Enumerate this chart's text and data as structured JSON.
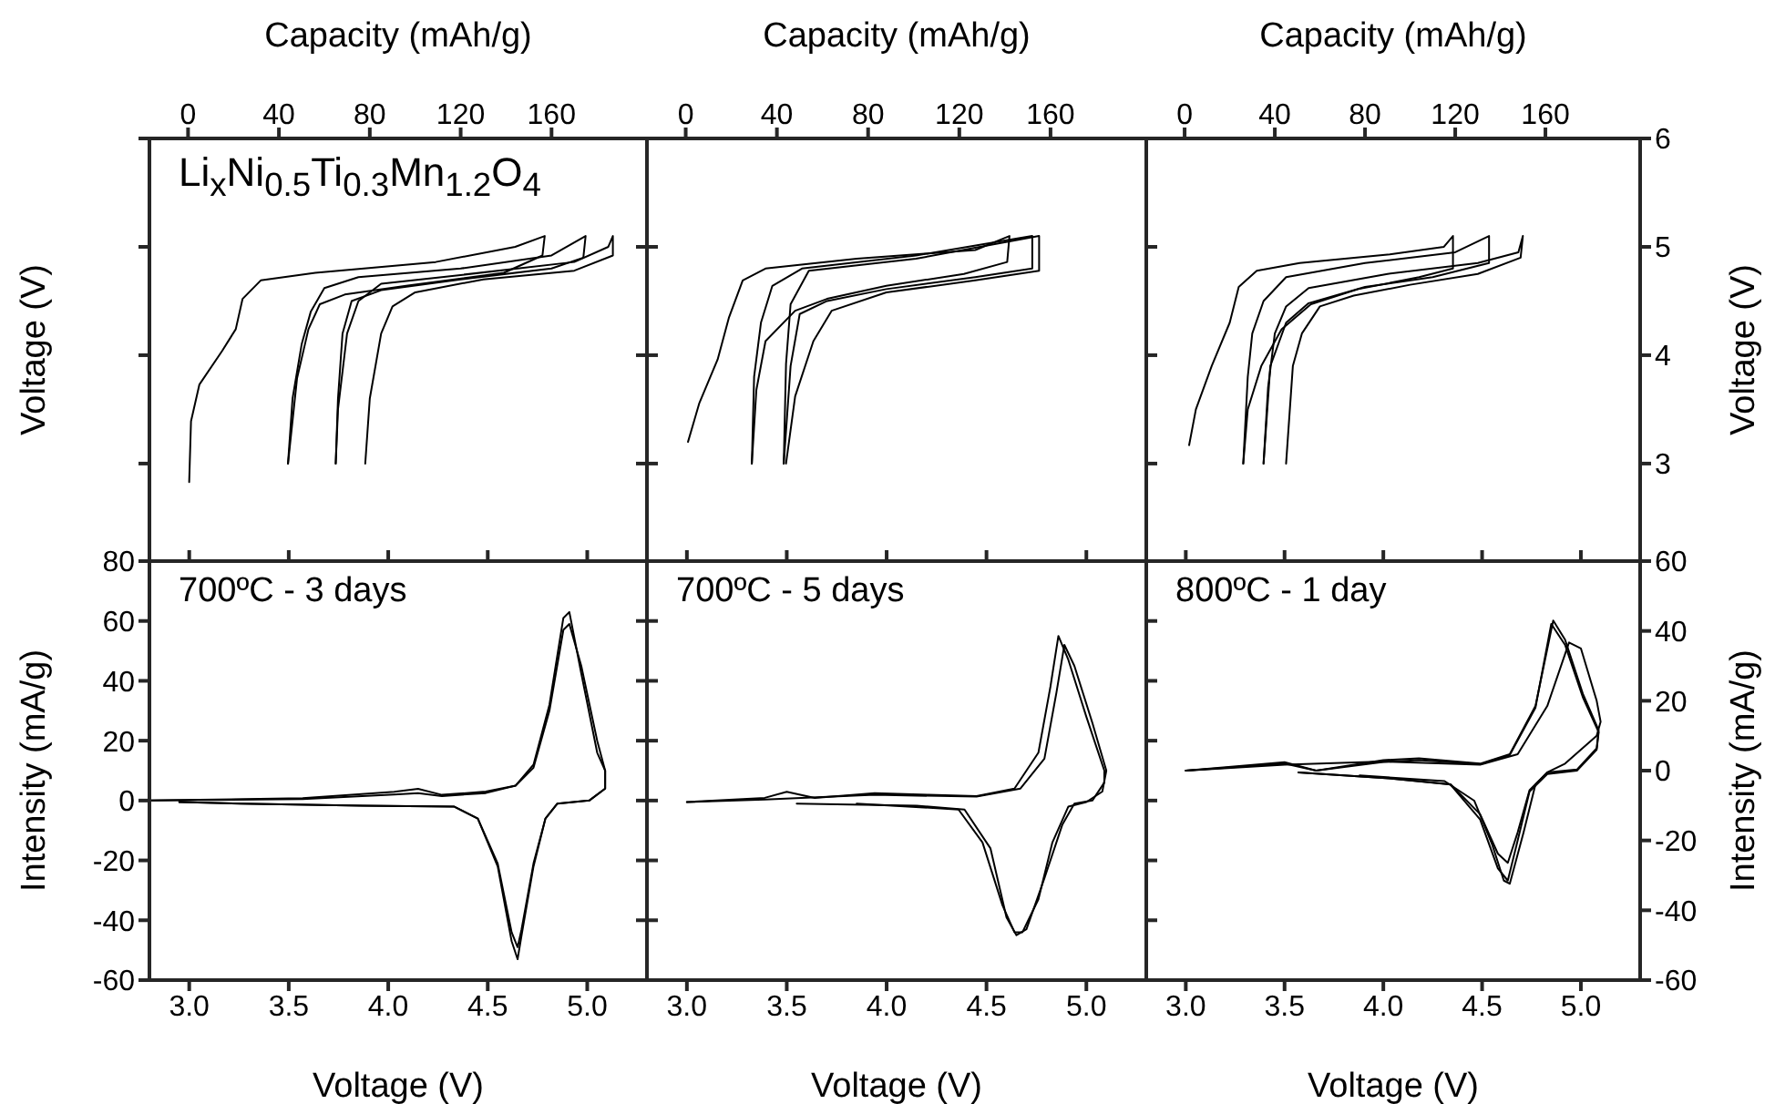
{
  "chart_data": [
    {
      "type": "line",
      "xlabel": "Capacity (mAh/g)",
      "ylabel": "Voltage (V)",
      "xlim": [
        -17,
        202
      ],
      "xticks": [
        0,
        40,
        80,
        120,
        160
      ],
      "ylim": [
        2.1,
        6
      ],
      "yticks": [
        3,
        4,
        5,
        6
      ],
      "tick_labels": "x",
      "annotations": [
        "Li$_{x}$Ni$_{0.5}$Ti$_{0.3}$Mn$_{1.2}$O$_{4}$"
      ],
      "series": [
        {
          "color": "#000000",
          "x": [
            0.5,
            1.3,
            5,
            15,
            21,
            24,
            32,
            56,
            109,
            144,
            157,
            156,
            139,
            96,
            69,
            58,
            53,
            48,
            44
          ],
          "values": [
            2.83,
            3.39,
            3.73,
            4.04,
            4.24,
            4.52,
            4.69,
            4.76,
            4.86,
            5.0,
            5.1,
            4.92,
            4.76,
            4.64,
            4.56,
            4.47,
            4.24,
            3.79,
            3.0
          ]
        },
        {
          "color": "#000000",
          "x": [
            44,
            46,
            50,
            54,
            60,
            75,
            120,
            160,
            175,
            174,
            160,
            120,
            85,
            72,
            68,
            66,
            65
          ],
          "values": [
            3.0,
            3.6,
            4.1,
            4.4,
            4.62,
            4.72,
            4.8,
            4.92,
            5.1,
            4.9,
            4.8,
            4.7,
            4.6,
            4.5,
            4.2,
            3.6,
            3.0
          ]
        },
        {
          "color": "#000000",
          "x": [
            65,
            66,
            70,
            75,
            85,
            120,
            170,
            185,
            187,
            187,
            170,
            130,
            100,
            90,
            85,
            80,
            78
          ],
          "values": [
            3.0,
            3.5,
            4.2,
            4.5,
            4.66,
            4.74,
            4.86,
            5.0,
            5.1,
            4.92,
            4.78,
            4.7,
            4.58,
            4.45,
            4.2,
            3.6,
            3.0
          ]
        }
      ]
    },
    {
      "type": "line",
      "xlabel": "Capacity (mAh/g)",
      "xlim": [
        -17,
        202
      ],
      "xticks": [
        0,
        40,
        80,
        120,
        160
      ],
      "ylim": [
        2.1,
        6
      ],
      "yticks": [
        3,
        4,
        5,
        6
      ],
      "tick_labels": "x",
      "series": [
        {
          "color": "#000000",
          "x": [
            1,
            6,
            14,
            19,
            25,
            35,
            75,
            127,
            142,
            141,
            122,
            88,
            62,
            48,
            35,
            31,
            29
          ],
          "values": [
            3.2,
            3.56,
            3.96,
            4.35,
            4.69,
            4.8,
            4.89,
            4.97,
            5.1,
            4.86,
            4.75,
            4.64,
            4.52,
            4.41,
            4.13,
            3.68,
            3.0
          ]
        },
        {
          "color": "#000000",
          "x": [
            29,
            30,
            33,
            38,
            51,
            101,
            152,
            152,
            127,
            88,
            62,
            50,
            46,
            43
          ],
          "values": [
            3.0,
            3.8,
            4.3,
            4.64,
            4.8,
            4.92,
            5.1,
            4.8,
            4.72,
            4.61,
            4.5,
            4.38,
            3.9,
            3.0
          ]
        },
        {
          "color": "#000000",
          "x": [
            43,
            44,
            46,
            54,
            101,
            155,
            155,
            127,
            88,
            64,
            56,
            48,
            44
          ],
          "values": [
            3.0,
            3.92,
            4.47,
            4.78,
            4.89,
            5.1,
            4.78,
            4.69,
            4.58,
            4.41,
            4.13,
            3.62,
            3.0
          ]
        }
      ]
    },
    {
      "type": "line",
      "xlabel": "Capacity (mAh/g)",
      "y2label": "Voltage (V)",
      "xlim": [
        -17,
        202
      ],
      "xticks": [
        0,
        40,
        80,
        120,
        160
      ],
      "y2lim": [
        2.1,
        6
      ],
      "y2ticks": [
        3,
        4,
        5,
        6
      ],
      "series": [
        {
          "axis": "y2",
          "color": "#000000",
          "x": [
            2,
            5,
            12,
            20,
            24,
            32,
            51,
            91,
            115,
            119,
            119,
            104,
            77,
            56,
            43,
            34,
            28,
            26
          ],
          "values": [
            3.17,
            3.5,
            3.9,
            4.3,
            4.63,
            4.78,
            4.85,
            4.93,
            5.0,
            5.1,
            4.8,
            4.72,
            4.61,
            4.47,
            4.24,
            3.9,
            3.5,
            3.0
          ]
        },
        {
          "axis": "y2",
          "color": "#000000",
          "x": [
            26,
            28,
            30,
            35,
            45,
            80,
            120,
            135,
            135,
            110,
            80,
            55,
            45,
            38,
            35
          ],
          "values": [
            3.0,
            3.8,
            4.2,
            4.5,
            4.72,
            4.85,
            4.95,
            5.1,
            4.85,
            4.72,
            4.63,
            4.48,
            4.3,
            3.9,
            3.0
          ]
        },
        {
          "axis": "y2",
          "color": "#000000",
          "x": [
            35,
            37,
            40,
            45,
            55,
            90,
            130,
            148,
            150,
            149,
            130,
            100,
            75,
            60,
            52,
            48,
            45
          ],
          "values": [
            3.0,
            3.7,
            4.2,
            4.45,
            4.62,
            4.75,
            4.85,
            4.95,
            5.1,
            4.9,
            4.75,
            4.65,
            4.55,
            4.45,
            4.2,
            3.9,
            3.0
          ]
        }
      ]
    },
    {
      "type": "line",
      "xlabel": "Voltage (V)",
      "ylabel": "Intensity (mA/g)",
      "xlim": [
        2.8,
        5.3
      ],
      "xticks": [
        {
          "value": 3,
          "label": "3.0"
        },
        3.5,
        {
          "value": 4,
          "label": "4.0"
        },
        4.5,
        {
          "value": 5,
          "label": "5.0"
        }
      ],
      "ylim": [
        -60,
        80
      ],
      "yticks": [
        -60,
        -40,
        -20,
        0,
        20,
        40,
        60,
        80
      ],
      "annotations": [
        "700ºC - 3 days"
      ],
      "series": [
        {
          "color": "#000000",
          "x": [
            2.8,
            3.57,
            4.03,
            4.15,
            4.27,
            4.49,
            4.64,
            4.73,
            4.81,
            4.88,
            4.91,
            4.97,
            5.05,
            5.09,
            5.09,
            5.01,
            4.85,
            4.79,
            4.73,
            4.67,
            4.65,
            4.62,
            4.55,
            4.45,
            4.33,
            3.87,
            3.26,
            2.95
          ],
          "values": [
            0,
            0.8,
            2.9,
            3.9,
            1.9,
            3,
            5,
            12,
            32,
            61,
            63,
            42.5,
            16,
            10,
            4,
            0,
            -1,
            -6,
            -22,
            -45,
            -53,
            -47,
            -22,
            -6,
            -2,
            -1.7,
            -1,
            -0.5
          ]
        },
        {
          "color": "#000000",
          "x": [
            2.8,
            3.57,
            4.03,
            4.15,
            4.27,
            4.49,
            4.64,
            4.73,
            4.81,
            4.88,
            4.91,
            4.97,
            5.05,
            5.09,
            5.09,
            5.01,
            4.85,
            4.79,
            4.73,
            4.67,
            4.65,
            4.62,
            4.55,
            4.45,
            4.33,
            3.87,
            3.26,
            2.95
          ],
          "values": [
            0,
            0.5,
            2,
            2.5,
            1.5,
            2.5,
            5,
            11,
            30,
            57,
            59,
            45,
            20,
            10,
            4,
            0,
            -1,
            -6,
            -21,
            -43,
            -49,
            -44,
            -21,
            -6,
            -2,
            -1.7,
            -1,
            -0.5
          ]
        }
      ]
    },
    {
      "type": "line",
      "xlabel": "Voltage (V)",
      "xlim": [
        2.8,
        5.3
      ],
      "xticks": [
        {
          "value": 3,
          "label": "3.0"
        },
        3.5,
        {
          "value": 4,
          "label": "4.0"
        },
        4.5,
        {
          "value": 5,
          "label": "5.0"
        }
      ],
      "ylim": [
        -60,
        80
      ],
      "yticks": [
        -60,
        -40,
        -20,
        0,
        20,
        40,
        60,
        80
      ],
      "tick_labels": "x",
      "annotations": [
        "700ºC - 5 days"
      ],
      "series": [
        {
          "color": "#000000",
          "x": [
            3.0,
            3.39,
            3.5,
            3.64,
            3.94,
            4.21,
            4.45,
            4.64,
            4.76,
            4.82,
            4.86,
            4.91,
            5.0,
            5.09,
            5.09,
            5.03,
            4.94,
            4.88,
            4.79,
            4.7,
            4.65,
            4.6,
            4.52,
            4.39,
            4.15,
            3.55
          ],
          "values": [
            -0.5,
            0.9,
            2.9,
            0.9,
            2.5,
            1.9,
            1.5,
            4,
            16,
            38,
            55,
            47,
            28,
            10,
            6,
            0,
            -1,
            -8,
            -26,
            -43,
            -45,
            -39,
            -16,
            -3,
            -1.7,
            -1
          ]
        },
        {
          "color": "#000000",
          "x": [
            3.0,
            3.39,
            3.94,
            4.45,
            4.67,
            4.79,
            4.85,
            4.89,
            4.94,
            5.03,
            5.1,
            5.08,
            5.0,
            4.91,
            4.83,
            4.76,
            4.68,
            4.64,
            4.58,
            4.48,
            4.36,
            3.85
          ],
          "values": [
            -0.5,
            0.3,
            1.9,
            1.3,
            4,
            14,
            36,
            52,
            45,
            26,
            10,
            3,
            -0.5,
            -2,
            -14,
            -33,
            -44,
            -44,
            -35,
            -14,
            -3,
            -1
          ]
        }
      ]
    },
    {
      "type": "line",
      "xlabel": "Voltage (V)",
      "y2label": "Intensity (mA/g)",
      "xlim": [
        2.8,
        5.3
      ],
      "xticks": [
        {
          "value": 3,
          "label": "3.0"
        },
        3.5,
        {
          "value": 4,
          "label": "4.0"
        },
        4.5,
        {
          "value": 5,
          "label": "5.0"
        }
      ],
      "y2lim": [
        -60,
        60
      ],
      "y2ticks": [
        -60,
        -40,
        -20,
        0,
        20,
        40,
        60
      ],
      "annotations": [
        "800ºC - 1 day"
      ],
      "series": [
        {
          "axis": "y2",
          "color": "#000000",
          "x": [
            3.0,
            3.5,
            3.66,
            4.0,
            4.18,
            4.49,
            4.64,
            4.77,
            4.86,
            4.92,
            5.01,
            5.09,
            5.08,
            4.98,
            4.83,
            4.74,
            4.68,
            4.63,
            4.58,
            4.49,
            4.34,
            4.03,
            3.57
          ],
          "values": [
            0,
            2.4,
            0,
            3,
            3.5,
            2,
            4.7,
            18.5,
            43,
            37.5,
            22,
            11.6,
            6.4,
            0.3,
            -0.5,
            -5.6,
            -17.7,
            -26.4,
            -23.8,
            -12.5,
            -3.9,
            -2.2,
            -0.5
          ]
        },
        {
          "axis": "y2",
          "color": "#000000",
          "x": [
            3.0,
            3.5,
            3.66,
            4.0,
            4.18,
            4.49,
            4.64,
            4.77,
            4.85,
            4.92,
            5.01,
            5.09,
            5.08,
            4.98,
            4.83,
            4.74,
            4.68,
            4.63,
            4.58,
            4.49,
            4.34,
            4.03,
            3.57
          ],
          "values": [
            0,
            2,
            0,
            2.5,
            3,
            1.8,
            4.5,
            18,
            42,
            36,
            21,
            11,
            6,
            0,
            -1,
            -6,
            -20,
            -31.5,
            -28,
            -14,
            -4,
            -2.2,
            -0.5
          ]
        },
        {
          "axis": "y2",
          "color": "#000000",
          "x": [
            3.0,
            3.5,
            4.0,
            4.49,
            4.68,
            4.83,
            4.94,
            5.0,
            5.08,
            5.1,
            5.08,
            4.92,
            4.83,
            4.77,
            4.71,
            4.64,
            4.61,
            4.55,
            4.46,
            4.31,
            3.88
          ],
          "values": [
            0,
            1.7,
            2.6,
            1.7,
            4.7,
            18.5,
            36.7,
            35,
            20,
            14,
            10,
            2,
            -0.5,
            -4,
            -17.7,
            -32.4,
            -31.5,
            -21,
            -8.6,
            -3,
            -1.4
          ]
        }
      ]
    }
  ]
}
